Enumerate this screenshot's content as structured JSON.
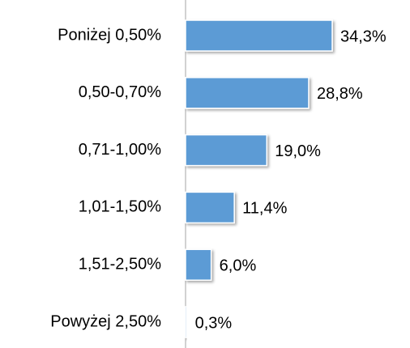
{
  "chart_data": {
    "type": "hbar",
    "categories": [
      "Poniżej 0,50%",
      "0,50-0,70%",
      "0,71-1,00%",
      "1,01-1,50%",
      "1,51-2,50%",
      "Powyżej 2,50%"
    ],
    "values": [
      34.3,
      28.8,
      19.0,
      11.4,
      6.0,
      0.3
    ],
    "value_labels": [
      "34,3%",
      "28,8%",
      "19,0%",
      "11,4%",
      "6,0%",
      "0,3%"
    ],
    "color": "#5b9bd5"
  }
}
